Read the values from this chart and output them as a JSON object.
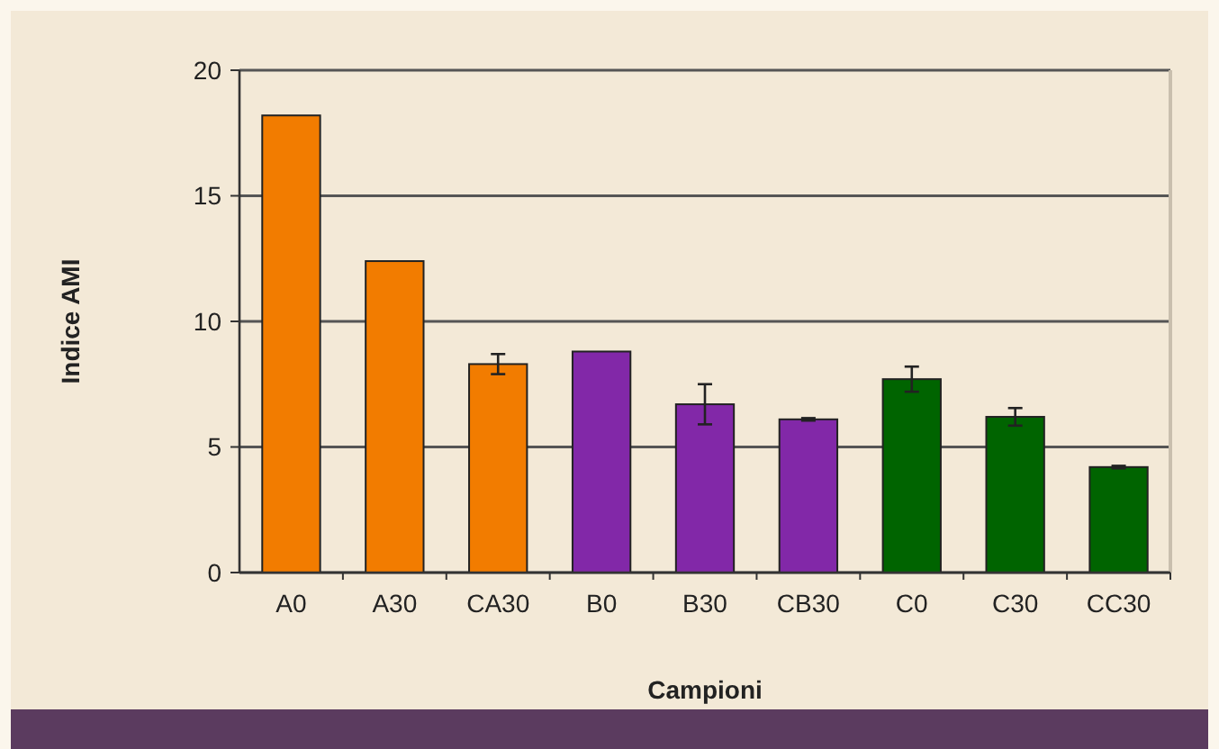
{
  "chart_data": {
    "type": "bar",
    "xlabel": "Campioni",
    "ylabel": "Indice AMI",
    "categories": [
      "A0",
      "A30",
      "CA30",
      "B0",
      "B30",
      "CB30",
      "C0",
      "C30",
      "CC30"
    ],
    "values": [
      18.2,
      12.4,
      8.3,
      8.8,
      6.7,
      6.1,
      7.7,
      6.2,
      4.2
    ],
    "errors": [
      null,
      null,
      0.4,
      null,
      0.8,
      0.05,
      0.5,
      0.35,
      0.05
    ],
    "colors": [
      "#f27c00",
      "#f27c00",
      "#f27c00",
      "#8228a8",
      "#8228a8",
      "#8228a8",
      "#006400",
      "#006400",
      "#006400"
    ],
    "ylim": [
      0,
      20
    ],
    "yticks": [
      0,
      5,
      10,
      15,
      20
    ],
    "grid": "y"
  }
}
